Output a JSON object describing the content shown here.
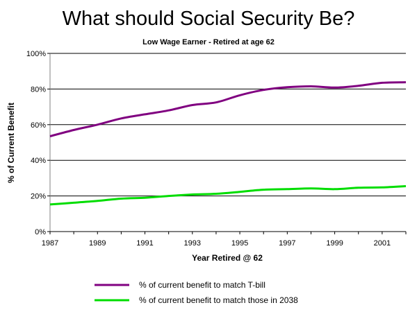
{
  "chart_data": {
    "type": "line",
    "title": "What should Social Security Be?",
    "subtitle": "Low Wage Earner - Retired at age 62",
    "xlabel": "Year Retired @ 62",
    "ylabel": "% of Current Benefit",
    "xlim": [
      1987,
      2002
    ],
    "ylim": [
      0,
      100
    ],
    "x_ticks": [
      1987,
      1989,
      1991,
      1993,
      1995,
      1997,
      1999,
      2001
    ],
    "x_tick_labels": [
      "1987",
      "1989",
      "1991",
      "1993",
      "1995",
      "1997",
      "1999",
      "2001"
    ],
    "y_ticks": [
      0,
      20,
      40,
      60,
      80,
      100
    ],
    "y_tick_labels": [
      "0%",
      "20%",
      "40%",
      "60%",
      "80%",
      "100%"
    ],
    "grid": "horizontal",
    "legend_position": "bottom",
    "x": [
      1987,
      1988,
      1989,
      1990,
      1991,
      1992,
      1993,
      1994,
      1995,
      1996,
      1997,
      1998,
      1999,
      2000,
      2001,
      2002
    ],
    "series": [
      {
        "name": "% of current benefit to match T-bill",
        "color": "#800080",
        "values": [
          53.5,
          57,
          60,
          63.5,
          65.8,
          68,
          71,
          72.5,
          76.5,
          79.5,
          81,
          81.5,
          80.8,
          81.8,
          83.5,
          83.8
        ]
      },
      {
        "name": "% of current benefit to match those in 2038",
        "color": "#00dd00",
        "values": [
          15.2,
          16.2,
          17.2,
          18.5,
          19,
          20,
          20.8,
          21.2,
          22.3,
          23.5,
          23.8,
          24.2,
          23.8,
          24.6,
          24.8,
          25.5
        ]
      }
    ]
  }
}
